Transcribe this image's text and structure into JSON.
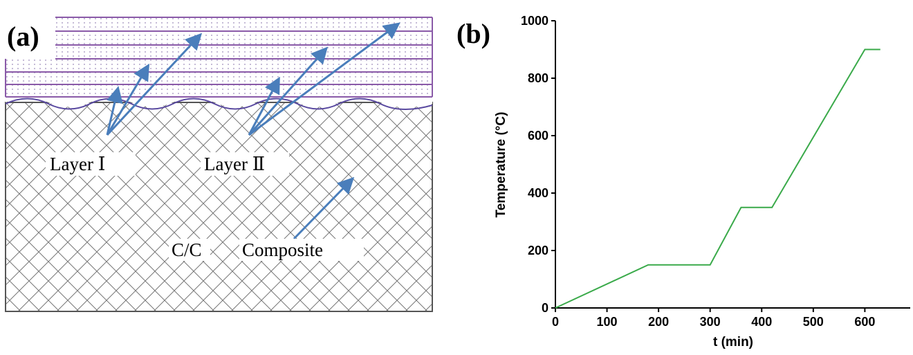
{
  "diagram": {
    "panel_label": "(a)",
    "labels": [
      "Layer Ⅰ",
      "Layer Ⅱ",
      "C/C",
      "Composite"
    ]
  },
  "chart_data": {
    "type": "line",
    "panel_label": "(b)",
    "x_label": "t (min)",
    "y_label": "Temperature (°C)",
    "x": [
      0,
      180,
      300,
      360,
      420,
      600,
      630
    ],
    "series": [
      {
        "color": "#3aaa4a",
        "values": [
          0,
          150,
          150,
          350,
          350,
          900,
          900
        ]
      }
    ],
    "xlim": [
      0,
      688
    ],
    "xticks": [
      0,
      100,
      200,
      300,
      400,
      500,
      600
    ],
    "ylim": [
      0,
      1000
    ],
    "yticks": [
      0,
      200,
      400,
      600,
      800,
      1000
    ]
  }
}
